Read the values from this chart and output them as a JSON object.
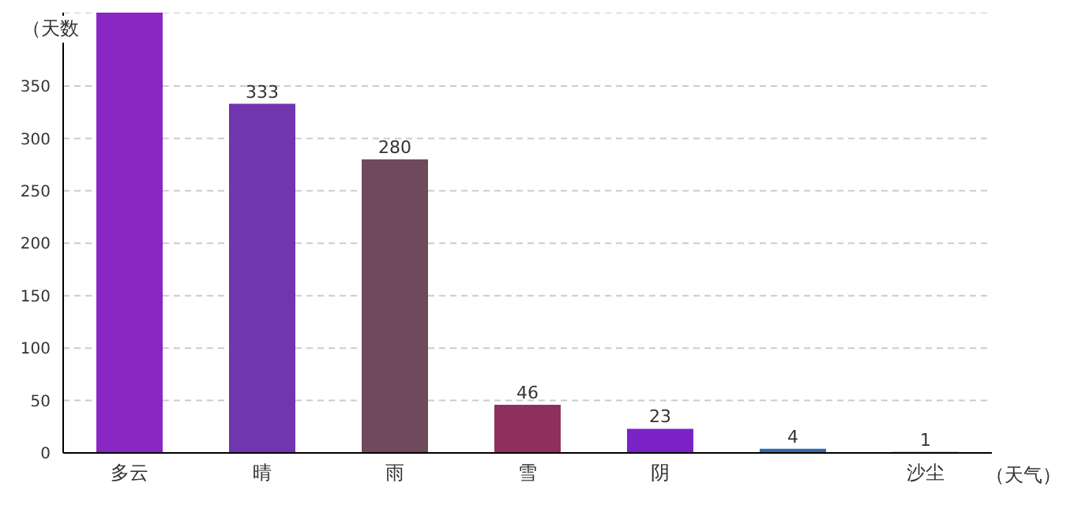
{
  "chart_data": {
    "type": "bar",
    "ylabel": "（天数",
    "xlabel": "（天气）",
    "categories": [
      "多云",
      "晴",
      "雨",
      "雪",
      "阴",
      null,
      "沙尘"
    ],
    "values": [
      420,
      333,
      280,
      46,
      23,
      4,
      1
    ],
    "colors": [
      "#8a26c4",
      "#7135b0",
      "#6e4a5c",
      "#8e2f5e",
      "#7a22c8",
      "#2e6da8",
      "#6a24b8"
    ],
    "value_labels": [
      null,
      "333",
      "280",
      "46",
      "23",
      "4",
      "1"
    ],
    "ylim": [
      0,
      420
    ],
    "yticks": [
      0,
      50,
      100,
      150,
      200,
      250,
      300,
      350
    ],
    "grid": "y"
  }
}
